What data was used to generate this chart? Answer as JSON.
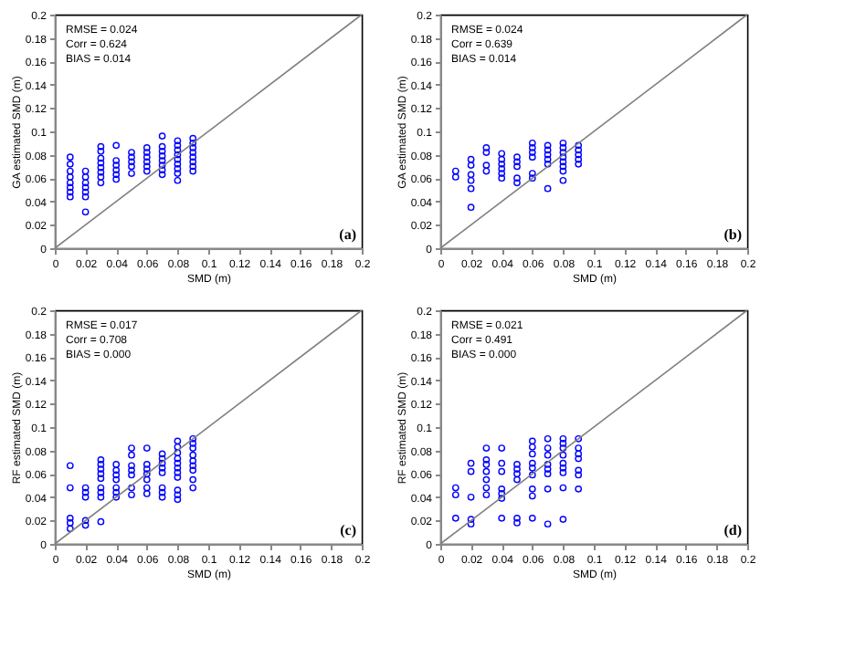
{
  "chart_data": [
    {
      "type": "scatter",
      "xlabel": "SMD (m)",
      "ylabel": "GA estimated SMD (m)",
      "xlim": [
        0,
        0.2
      ],
      "ylim": [
        0,
        0.2
      ],
      "xticks": [
        0,
        0.02,
        0.04,
        0.06,
        0.08,
        0.1,
        0.12,
        0.14,
        0.16,
        0.18,
        0.2
      ],
      "yticks": [
        0,
        0.02,
        0.04,
        0.06,
        0.08,
        0.1,
        0.12,
        0.14,
        0.16,
        0.18,
        0.2
      ],
      "grid": false,
      "marker": "circle",
      "annotations": [
        "RMSE = 0.024",
        "Corr = 0.624",
        "BIAS = 0.014",
        "(a)"
      ],
      "series": [
        {
          "color": "#0000ff",
          "x": [
            0.01,
            0.01,
            0.01,
            0.01,
            0.01,
            0.01,
            0.01,
            0.01,
            0.02,
            0.02,
            0.02,
            0.02,
            0.02,
            0.02,
            0.02,
            0.03,
            0.03,
            0.03,
            0.03,
            0.03,
            0.03,
            0.03,
            0.03,
            0.04,
            0.04,
            0.04,
            0.04,
            0.04,
            0.04,
            0.05,
            0.05,
            0.05,
            0.05,
            0.05,
            0.06,
            0.06,
            0.06,
            0.06,
            0.06,
            0.06,
            0.07,
            0.07,
            0.07,
            0.07,
            0.07,
            0.07,
            0.07,
            0.07,
            0.08,
            0.08,
            0.08,
            0.08,
            0.08,
            0.08,
            0.08,
            0.08,
            0.08,
            0.09,
            0.09,
            0.09,
            0.09,
            0.09,
            0.09,
            0.09,
            0.09
          ],
          "values": [
            0.078,
            0.072,
            0.066,
            0.061,
            0.056,
            0.052,
            0.048,
            0.044,
            0.066,
            0.061,
            0.056,
            0.052,
            0.048,
            0.044,
            0.031,
            0.087,
            0.083,
            0.077,
            0.073,
            0.069,
            0.065,
            0.061,
            0.056,
            0.088,
            0.075,
            0.071,
            0.067,
            0.063,
            0.059,
            0.082,
            0.078,
            0.074,
            0.07,
            0.064,
            0.086,
            0.082,
            0.078,
            0.074,
            0.07,
            0.066,
            0.096,
            0.087,
            0.083,
            0.079,
            0.075,
            0.071,
            0.067,
            0.063,
            0.092,
            0.088,
            0.084,
            0.08,
            0.076,
            0.072,
            0.068,
            0.064,
            0.058,
            0.094,
            0.09,
            0.086,
            0.082,
            0.078,
            0.074,
            0.07,
            0.066
          ]
        },
        {
          "type": "line",
          "marker": "none",
          "color": "#808080",
          "x": [
            0,
            0.2
          ],
          "values": [
            0,
            0.2
          ]
        }
      ]
    },
    {
      "type": "scatter",
      "xlabel": "SMD (m)",
      "ylabel": "GA estimated SMD (m)",
      "xlim": [
        0,
        0.2
      ],
      "ylim": [
        0,
        0.2
      ],
      "xticks": [
        0,
        0.02,
        0.04,
        0.06,
        0.08,
        0.1,
        0.12,
        0.14,
        0.16,
        0.18,
        0.2
      ],
      "yticks": [
        0,
        0.02,
        0.04,
        0.06,
        0.08,
        0.1,
        0.12,
        0.14,
        0.16,
        0.18,
        0.2
      ],
      "grid": false,
      "marker": "circle",
      "annotations": [
        "RMSE = 0.024",
        "Corr = 0.639",
        "BIAS = 0.014",
        "(b)"
      ],
      "series": [
        {
          "color": "#0000ff",
          "x": [
            0.01,
            0.01,
            0.02,
            0.02,
            0.02,
            0.02,
            0.02,
            0.02,
            0.03,
            0.03,
            0.03,
            0.03,
            0.04,
            0.04,
            0.04,
            0.04,
            0.04,
            0.04,
            0.05,
            0.05,
            0.05,
            0.05,
            0.05,
            0.06,
            0.06,
            0.06,
            0.06,
            0.06,
            0.06,
            0.07,
            0.07,
            0.07,
            0.07,
            0.07,
            0.07,
            0.08,
            0.08,
            0.08,
            0.08,
            0.08,
            0.08,
            0.08,
            0.08,
            0.09,
            0.09,
            0.09,
            0.09,
            0.09
          ],
          "values": [
            0.066,
            0.061,
            0.076,
            0.071,
            0.063,
            0.058,
            0.051,
            0.035,
            0.086,
            0.082,
            0.071,
            0.066,
            0.081,
            0.076,
            0.072,
            0.068,
            0.064,
            0.06,
            0.078,
            0.074,
            0.07,
            0.06,
            0.056,
            0.09,
            0.086,
            0.082,
            0.078,
            0.064,
            0.06,
            0.088,
            0.084,
            0.08,
            0.076,
            0.072,
            0.051,
            0.09,
            0.086,
            0.082,
            0.078,
            0.074,
            0.07,
            0.066,
            0.058,
            0.088,
            0.084,
            0.08,
            0.076,
            0.072
          ]
        },
        {
          "type": "line",
          "marker": "none",
          "color": "#808080",
          "x": [
            0,
            0.2
          ],
          "values": [
            0,
            0.2
          ]
        }
      ]
    },
    {
      "type": "scatter",
      "xlabel": "SMD (m)",
      "ylabel": "RF estimated SMD (m)",
      "xlim": [
        0,
        0.2
      ],
      "ylim": [
        0,
        0.2
      ],
      "xticks": [
        0,
        0.02,
        0.04,
        0.06,
        0.08,
        0.1,
        0.12,
        0.14,
        0.16,
        0.18,
        0.2
      ],
      "yticks": [
        0,
        0.02,
        0.04,
        0.06,
        0.08,
        0.1,
        0.12,
        0.14,
        0.16,
        0.18,
        0.2
      ],
      "grid": false,
      "marker": "circle",
      "annotations": [
        "RMSE = 0.017",
        "Corr = 0.708",
        "BIAS = 0.000",
        "(c)"
      ],
      "series": [
        {
          "color": "#0000ff",
          "x": [
            0.01,
            0.01,
            0.01,
            0.01,
            0.01,
            0.02,
            0.02,
            0.02,
            0.02,
            0.02,
            0.03,
            0.03,
            0.03,
            0.03,
            0.03,
            0.03,
            0.03,
            0.03,
            0.03,
            0.04,
            0.04,
            0.04,
            0.04,
            0.04,
            0.04,
            0.04,
            0.05,
            0.05,
            0.05,
            0.05,
            0.05,
            0.05,
            0.05,
            0.06,
            0.06,
            0.06,
            0.06,
            0.06,
            0.06,
            0.06,
            0.07,
            0.07,
            0.07,
            0.07,
            0.07,
            0.07,
            0.07,
            0.07,
            0.08,
            0.08,
            0.08,
            0.08,
            0.08,
            0.08,
            0.08,
            0.08,
            0.08,
            0.08,
            0.08,
            0.09,
            0.09,
            0.09,
            0.09,
            0.09,
            0.09,
            0.09,
            0.09,
            0.09
          ],
          "values": [
            0.067,
            0.048,
            0.022,
            0.018,
            0.013,
            0.048,
            0.044,
            0.04,
            0.02,
            0.016,
            0.072,
            0.068,
            0.064,
            0.06,
            0.056,
            0.048,
            0.044,
            0.04,
            0.019,
            0.068,
            0.063,
            0.059,
            0.055,
            0.048,
            0.044,
            0.04,
            0.082,
            0.076,
            0.067,
            0.063,
            0.059,
            0.048,
            0.042,
            0.082,
            0.068,
            0.064,
            0.06,
            0.055,
            0.048,
            0.043,
            0.077,
            0.073,
            0.069,
            0.065,
            0.061,
            0.048,
            0.044,
            0.04,
            0.088,
            0.083,
            0.078,
            0.073,
            0.069,
            0.065,
            0.061,
            0.057,
            0.046,
            0.042,
            0.038,
            0.09,
            0.086,
            0.082,
            0.076,
            0.071,
            0.067,
            0.063,
            0.055,
            0.048
          ]
        },
        {
          "type": "line",
          "marker": "none",
          "color": "#808080",
          "x": [
            0,
            0.2
          ],
          "values": [
            0,
            0.2
          ]
        }
      ]
    },
    {
      "type": "scatter",
      "xlabel": "SMD (m)",
      "ylabel": "RF estimated SMD (m)",
      "xlim": [
        0,
        0.2
      ],
      "ylim": [
        0,
        0.2
      ],
      "xticks": [
        0,
        0.02,
        0.04,
        0.06,
        0.08,
        0.1,
        0.12,
        0.14,
        0.16,
        0.18,
        0.2
      ],
      "yticks": [
        0,
        0.02,
        0.04,
        0.06,
        0.08,
        0.1,
        0.12,
        0.14,
        0.16,
        0.18,
        0.2
      ],
      "grid": false,
      "marker": "circle",
      "annotations": [
        "RMSE = 0.021",
        "Corr = 0.491",
        "BIAS = 0.000",
        "(d)"
      ],
      "series": [
        {
          "color": "#0000ff",
          "x": [
            0.01,
            0.01,
            0.01,
            0.02,
            0.02,
            0.02,
            0.02,
            0.02,
            0.03,
            0.03,
            0.03,
            0.03,
            0.03,
            0.03,
            0.03,
            0.04,
            0.04,
            0.04,
            0.04,
            0.04,
            0.04,
            0.04,
            0.05,
            0.05,
            0.05,
            0.05,
            0.05,
            0.05,
            0.06,
            0.06,
            0.06,
            0.06,
            0.06,
            0.06,
            0.06,
            0.06,
            0.06,
            0.07,
            0.07,
            0.07,
            0.07,
            0.07,
            0.07,
            0.07,
            0.07,
            0.08,
            0.08,
            0.08,
            0.08,
            0.08,
            0.08,
            0.08,
            0.08,
            0.08,
            0.09,
            0.09,
            0.09,
            0.09,
            0.09,
            0.09,
            0.09
          ],
          "values": [
            0.048,
            0.042,
            0.022,
            0.069,
            0.062,
            0.04,
            0.021,
            0.017,
            0.082,
            0.072,
            0.068,
            0.062,
            0.055,
            0.048,
            0.042,
            0.082,
            0.069,
            0.062,
            0.047,
            0.043,
            0.039,
            0.022,
            0.068,
            0.064,
            0.06,
            0.055,
            0.022,
            0.018,
            0.088,
            0.083,
            0.077,
            0.069,
            0.065,
            0.059,
            0.047,
            0.041,
            0.022,
            0.09,
            0.082,
            0.076,
            0.068,
            0.064,
            0.06,
            0.047,
            0.017,
            0.09,
            0.086,
            0.082,
            0.076,
            0.069,
            0.065,
            0.061,
            0.048,
            0.021,
            0.09,
            0.082,
            0.077,
            0.073,
            0.063,
            0.059,
            0.047
          ]
        },
        {
          "type": "line",
          "marker": "none",
          "color": "#808080",
          "x": [
            0,
            0.2
          ],
          "values": [
            0,
            0.2
          ]
        }
      ]
    }
  ]
}
